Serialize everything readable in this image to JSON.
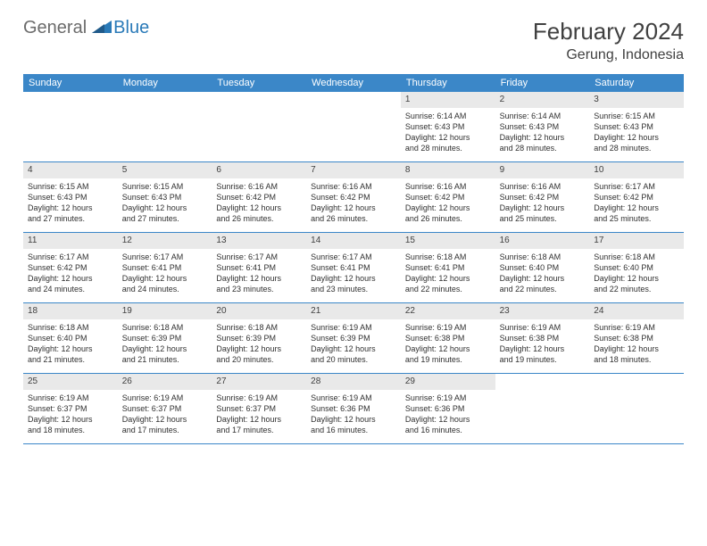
{
  "logo": {
    "text_general": "General",
    "text_blue": "Blue",
    "shape_color": "#2a7ab8"
  },
  "header": {
    "month_title": "February 2024",
    "location": "Gerung, Indonesia"
  },
  "colors": {
    "header_bar": "#3b87c8",
    "daynum_bg": "#e9e9e9",
    "row_divider": "#3b87c8",
    "text": "#303030"
  },
  "day_names": [
    "Sunday",
    "Monday",
    "Tuesday",
    "Wednesday",
    "Thursday",
    "Friday",
    "Saturday"
  ],
  "weeks": [
    [
      {
        "empty": true
      },
      {
        "empty": true
      },
      {
        "empty": true
      },
      {
        "empty": true
      },
      {
        "day": "1",
        "sunrise": "Sunrise: 6:14 AM",
        "sunset": "Sunset: 6:43 PM",
        "dl1": "Daylight: 12 hours",
        "dl2": "and 28 minutes."
      },
      {
        "day": "2",
        "sunrise": "Sunrise: 6:14 AM",
        "sunset": "Sunset: 6:43 PM",
        "dl1": "Daylight: 12 hours",
        "dl2": "and 28 minutes."
      },
      {
        "day": "3",
        "sunrise": "Sunrise: 6:15 AM",
        "sunset": "Sunset: 6:43 PM",
        "dl1": "Daylight: 12 hours",
        "dl2": "and 28 minutes."
      }
    ],
    [
      {
        "day": "4",
        "sunrise": "Sunrise: 6:15 AM",
        "sunset": "Sunset: 6:43 PM",
        "dl1": "Daylight: 12 hours",
        "dl2": "and 27 minutes."
      },
      {
        "day": "5",
        "sunrise": "Sunrise: 6:15 AM",
        "sunset": "Sunset: 6:43 PM",
        "dl1": "Daylight: 12 hours",
        "dl2": "and 27 minutes."
      },
      {
        "day": "6",
        "sunrise": "Sunrise: 6:16 AM",
        "sunset": "Sunset: 6:42 PM",
        "dl1": "Daylight: 12 hours",
        "dl2": "and 26 minutes."
      },
      {
        "day": "7",
        "sunrise": "Sunrise: 6:16 AM",
        "sunset": "Sunset: 6:42 PM",
        "dl1": "Daylight: 12 hours",
        "dl2": "and 26 minutes."
      },
      {
        "day": "8",
        "sunrise": "Sunrise: 6:16 AM",
        "sunset": "Sunset: 6:42 PM",
        "dl1": "Daylight: 12 hours",
        "dl2": "and 26 minutes."
      },
      {
        "day": "9",
        "sunrise": "Sunrise: 6:16 AM",
        "sunset": "Sunset: 6:42 PM",
        "dl1": "Daylight: 12 hours",
        "dl2": "and 25 minutes."
      },
      {
        "day": "10",
        "sunrise": "Sunrise: 6:17 AM",
        "sunset": "Sunset: 6:42 PM",
        "dl1": "Daylight: 12 hours",
        "dl2": "and 25 minutes."
      }
    ],
    [
      {
        "day": "11",
        "sunrise": "Sunrise: 6:17 AM",
        "sunset": "Sunset: 6:42 PM",
        "dl1": "Daylight: 12 hours",
        "dl2": "and 24 minutes."
      },
      {
        "day": "12",
        "sunrise": "Sunrise: 6:17 AM",
        "sunset": "Sunset: 6:41 PM",
        "dl1": "Daylight: 12 hours",
        "dl2": "and 24 minutes."
      },
      {
        "day": "13",
        "sunrise": "Sunrise: 6:17 AM",
        "sunset": "Sunset: 6:41 PM",
        "dl1": "Daylight: 12 hours",
        "dl2": "and 23 minutes."
      },
      {
        "day": "14",
        "sunrise": "Sunrise: 6:17 AM",
        "sunset": "Sunset: 6:41 PM",
        "dl1": "Daylight: 12 hours",
        "dl2": "and 23 minutes."
      },
      {
        "day": "15",
        "sunrise": "Sunrise: 6:18 AM",
        "sunset": "Sunset: 6:41 PM",
        "dl1": "Daylight: 12 hours",
        "dl2": "and 22 minutes."
      },
      {
        "day": "16",
        "sunrise": "Sunrise: 6:18 AM",
        "sunset": "Sunset: 6:40 PM",
        "dl1": "Daylight: 12 hours",
        "dl2": "and 22 minutes."
      },
      {
        "day": "17",
        "sunrise": "Sunrise: 6:18 AM",
        "sunset": "Sunset: 6:40 PM",
        "dl1": "Daylight: 12 hours",
        "dl2": "and 22 minutes."
      }
    ],
    [
      {
        "day": "18",
        "sunrise": "Sunrise: 6:18 AM",
        "sunset": "Sunset: 6:40 PM",
        "dl1": "Daylight: 12 hours",
        "dl2": "and 21 minutes."
      },
      {
        "day": "19",
        "sunrise": "Sunrise: 6:18 AM",
        "sunset": "Sunset: 6:39 PM",
        "dl1": "Daylight: 12 hours",
        "dl2": "and 21 minutes."
      },
      {
        "day": "20",
        "sunrise": "Sunrise: 6:18 AM",
        "sunset": "Sunset: 6:39 PM",
        "dl1": "Daylight: 12 hours",
        "dl2": "and 20 minutes."
      },
      {
        "day": "21",
        "sunrise": "Sunrise: 6:19 AM",
        "sunset": "Sunset: 6:39 PM",
        "dl1": "Daylight: 12 hours",
        "dl2": "and 20 minutes."
      },
      {
        "day": "22",
        "sunrise": "Sunrise: 6:19 AM",
        "sunset": "Sunset: 6:38 PM",
        "dl1": "Daylight: 12 hours",
        "dl2": "and 19 minutes."
      },
      {
        "day": "23",
        "sunrise": "Sunrise: 6:19 AM",
        "sunset": "Sunset: 6:38 PM",
        "dl1": "Daylight: 12 hours",
        "dl2": "and 19 minutes."
      },
      {
        "day": "24",
        "sunrise": "Sunrise: 6:19 AM",
        "sunset": "Sunset: 6:38 PM",
        "dl1": "Daylight: 12 hours",
        "dl2": "and 18 minutes."
      }
    ],
    [
      {
        "day": "25",
        "sunrise": "Sunrise: 6:19 AM",
        "sunset": "Sunset: 6:37 PM",
        "dl1": "Daylight: 12 hours",
        "dl2": "and 18 minutes."
      },
      {
        "day": "26",
        "sunrise": "Sunrise: 6:19 AM",
        "sunset": "Sunset: 6:37 PM",
        "dl1": "Daylight: 12 hours",
        "dl2": "and 17 minutes."
      },
      {
        "day": "27",
        "sunrise": "Sunrise: 6:19 AM",
        "sunset": "Sunset: 6:37 PM",
        "dl1": "Daylight: 12 hours",
        "dl2": "and 17 minutes."
      },
      {
        "day": "28",
        "sunrise": "Sunrise: 6:19 AM",
        "sunset": "Sunset: 6:36 PM",
        "dl1": "Daylight: 12 hours",
        "dl2": "and 16 minutes."
      },
      {
        "day": "29",
        "sunrise": "Sunrise: 6:19 AM",
        "sunset": "Sunset: 6:36 PM",
        "dl1": "Daylight: 12 hours",
        "dl2": "and 16 minutes."
      },
      {
        "empty": true
      },
      {
        "empty": true
      }
    ]
  ]
}
